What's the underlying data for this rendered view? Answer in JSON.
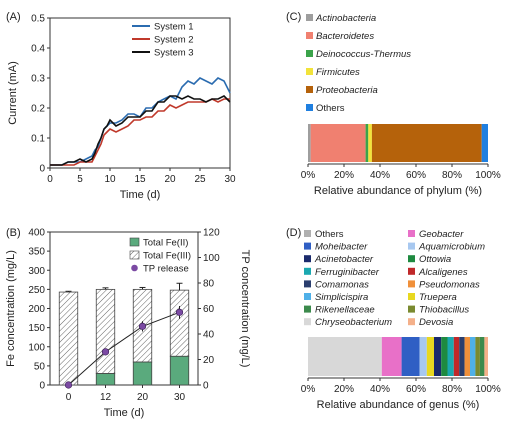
{
  "chart_data": [
    {
      "panel": "(A)",
      "type": "line",
      "xlabel": "Time (d)",
      "ylabel": "Current (mA)",
      "xlim": [
        0,
        30
      ],
      "ylim": [
        0,
        0.5
      ],
      "xticks": [
        "0",
        "5",
        "10",
        "15",
        "20",
        "25",
        "30"
      ],
      "yticks": [
        "0",
        "0.1",
        "0.2",
        "0.3",
        "0.4",
        "0.5"
      ],
      "legend_position": "top-left",
      "series": [
        {
          "name": "System 1",
          "color": "#2b6cb0",
          "x": [
            0,
            2,
            3,
            4,
            5,
            6,
            7,
            7.5,
            8,
            8.5,
            9,
            9.5,
            10,
            11,
            12,
            13,
            14,
            15,
            16,
            17,
            18,
            19,
            20,
            21,
            22,
            23,
            24,
            25,
            26,
            27,
            28,
            29,
            30
          ],
          "y": [
            0.01,
            0.01,
            0.02,
            0.02,
            0.02,
            0.03,
            0.04,
            0.06,
            0.07,
            0.1,
            0.13,
            0.14,
            0.15,
            0.15,
            0.16,
            0.18,
            0.18,
            0.17,
            0.2,
            0.2,
            0.22,
            0.23,
            0.24,
            0.23,
            0.27,
            0.29,
            0.28,
            0.3,
            0.29,
            0.28,
            0.3,
            0.29,
            0.25
          ]
        },
        {
          "name": "System 2",
          "color": "#c0392b",
          "x": [
            0,
            2,
            3,
            4,
            5,
            6,
            7,
            7.5,
            8,
            8.5,
            9,
            9.5,
            10,
            11,
            12,
            13,
            14,
            15,
            16,
            17,
            18,
            19,
            20,
            21,
            22,
            23,
            24,
            25,
            26,
            27,
            28,
            29,
            30
          ],
          "y": [
            0.01,
            0.01,
            0.01,
            0.01,
            0.02,
            0.02,
            0.02,
            0.04,
            0.06,
            0.08,
            0.11,
            0.12,
            0.13,
            0.12,
            0.13,
            0.14,
            0.16,
            0.16,
            0.17,
            0.17,
            0.19,
            0.19,
            0.21,
            0.2,
            0.21,
            0.22,
            0.22,
            0.22,
            0.22,
            0.23,
            0.22,
            0.23,
            0.23
          ]
        },
        {
          "name": "System 3",
          "color": "#111111",
          "x": [
            0,
            2,
            3,
            4,
            5,
            6,
            7,
            7.5,
            8,
            8.5,
            9,
            9.5,
            10,
            11,
            12,
            13,
            14,
            15,
            16,
            17,
            18,
            19,
            20,
            21,
            22,
            23,
            24,
            25,
            26,
            27,
            28,
            29,
            30
          ],
          "y": [
            0.01,
            0.01,
            0.02,
            0.02,
            0.03,
            0.02,
            0.03,
            0.05,
            0.08,
            0.1,
            0.13,
            0.14,
            0.16,
            0.14,
            0.15,
            0.17,
            0.17,
            0.17,
            0.19,
            0.19,
            0.22,
            0.22,
            0.24,
            0.24,
            0.23,
            0.24,
            0.23,
            0.23,
            0.22,
            0.23,
            0.23,
            0.24,
            0.22
          ]
        }
      ]
    },
    {
      "panel": "(B)",
      "type": "bar",
      "xlabel": "Time (d)",
      "ylabel": "Fe concentration (mg/L)",
      "ylabel_right": "TP concentration (mg/L)",
      "categories": [
        "0",
        "12",
        "20",
        "30"
      ],
      "ylim": [
        0,
        400
      ],
      "ylim_right": [
        0,
        120
      ],
      "yticks": [
        "0",
        "50",
        "100",
        "150",
        "200",
        "250",
        "300",
        "350",
        "400"
      ],
      "yticks_right": [
        "0",
        "20",
        "40",
        "60",
        "80",
        "100",
        "120"
      ],
      "legend_position": "top-right",
      "series": [
        {
          "name": "Total Fe(II)",
          "color": "#5aaa7d",
          "values": [
            0,
            30,
            60,
            75
          ]
        },
        {
          "name": "Total Fe(III)",
          "color": "#ffffff",
          "values": [
            243,
            220,
            190,
            173
          ]
        },
        {
          "name": "TP release",
          "color": "#7b4aa3",
          "axis": "right",
          "values": [
            0,
            26,
            46,
            57
          ],
          "errors": [
            0,
            2,
            4,
            5
          ]
        }
      ],
      "bar_errors": [
        2,
        4,
        5,
        18
      ]
    },
    {
      "panel": "(C)",
      "type": "bar",
      "orientation": "horizontal-stacked",
      "xlabel": "Relative abundance of phylum (%)",
      "xlim": [
        0,
        100
      ],
      "xticks": [
        "0%",
        "20%",
        "40%",
        "60%",
        "80%",
        "100%"
      ],
      "series": [
        {
          "name": "Actinobacteria",
          "color": "#9e9e9e",
          "values": [
            1.5
          ]
        },
        {
          "name": "Bacteroidetes",
          "color": "#f08070",
          "values": [
            30.5
          ]
        },
        {
          "name": "Deinococcus-Thermus",
          "color": "#3aa34a",
          "values": [
            1.5
          ]
        },
        {
          "name": "Firmicutes",
          "color": "#f2e33a",
          "values": [
            2
          ]
        },
        {
          "name": "Proteobacteria",
          "color": "#b5620b",
          "values": [
            61
          ]
        },
        {
          "name": "Others",
          "color": "#1f7fe0",
          "values": [
            3.5
          ]
        }
      ]
    },
    {
      "panel": "(D)",
      "type": "bar",
      "orientation": "horizontal-stacked",
      "xlabel": "Relative abundance of genus (%)",
      "xlim": [
        0,
        100
      ],
      "xticks": [
        "0%",
        "20%",
        "40%",
        "60%",
        "80%",
        "100%"
      ],
      "series": [
        {
          "name": "Others",
          "color": "#b0b0b0",
          "values": [
            0
          ]
        },
        {
          "name": "Chryseobacterium",
          "color": "#d8d8d8",
          "values": [
            41
          ]
        },
        {
          "name": "Geobacter",
          "color": "#e870c8",
          "values": [
            11
          ]
        },
        {
          "name": "Moheibacter",
          "color": "#2f5fc4",
          "values": [
            10
          ]
        },
        {
          "name": "Aquamicrobium",
          "color": "#a7c8f0",
          "values": [
            4
          ]
        },
        {
          "name": "Truepera",
          "color": "#e8d820",
          "values": [
            4
          ]
        },
        {
          "name": "Acinetobacter",
          "color": "#1a2a6c",
          "values": [
            4
          ]
        },
        {
          "name": "Ottowia",
          "color": "#1e8a40",
          "values": [
            3.5
          ]
        },
        {
          "name": "Ferruginibacter",
          "color": "#1aa8b0",
          "values": [
            3.5
          ]
        },
        {
          "name": "Alcaligenes",
          "color": "#c0282a",
          "values": [
            3
          ]
        },
        {
          "name": "Comamonas",
          "color": "#2a3e6e",
          "values": [
            3
          ]
        },
        {
          "name": "Pseudomonas",
          "color": "#f0903a",
          "values": [
            3
          ]
        },
        {
          "name": "Simplicispira",
          "color": "#4fb0e8",
          "values": [
            3
          ]
        },
        {
          "name": "Thiobacillus",
          "color": "#7a8a30",
          "values": [
            2.5
          ]
        },
        {
          "name": "Rikenellaceae",
          "color": "#3c8a4c",
          "values": [
            2.5
          ]
        },
        {
          "name": "Devosia",
          "color": "#f4b08a",
          "values": [
            2
          ]
        }
      ]
    }
  ],
  "labels": {
    "panel_a": "(A)",
    "panel_b": "(B)",
    "panel_c": "(C)",
    "panel_d": "(D)"
  },
  "legend_d_order": [
    [
      "Others",
      "#b0b0b0",
      false
    ],
    [
      "Geobacter",
      "#e870c8",
      true
    ],
    [
      "Moheibacter",
      "#2f5fc4",
      true
    ],
    [
      "Aquamicrobium",
      "#a7c8f0",
      true
    ],
    [
      "Acinetobacter",
      "#1a2a6c",
      true
    ],
    [
      "Ottowia",
      "#1e8a40",
      true
    ],
    [
      "Ferruginibacter",
      "#1aa8b0",
      true
    ],
    [
      "Alcaligenes",
      "#c0282a",
      true
    ],
    [
      "Comamonas",
      "#2a3e6e",
      true
    ],
    [
      "Pseudomonas",
      "#f0903a",
      true
    ],
    [
      "Simplicispira",
      "#4fb0e8",
      true
    ],
    [
      "Truepera",
      "#e8d820",
      true
    ],
    [
      "Rikenellaceae",
      "#3c8a4c",
      true
    ],
    [
      "Thiobacillus",
      "#7a8a30",
      true
    ],
    [
      "Chryseobacterium",
      "#d8d8d8",
      true
    ],
    [
      "Devosia",
      "#f4b08a",
      true
    ]
  ]
}
